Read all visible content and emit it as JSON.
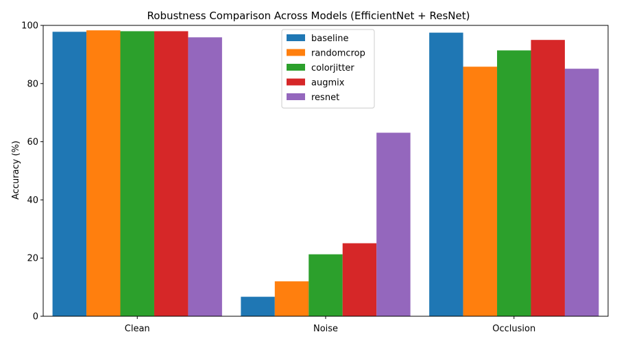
{
  "chart_data": {
    "type": "bar",
    "title": "Robustness Comparison Across Models (EfficientNet + ResNet)",
    "xlabel": "",
    "ylabel": "Accuracy (%)",
    "ylim": [
      0,
      100
    ],
    "yticks": [
      0,
      20,
      40,
      60,
      80,
      100
    ],
    "categories": [
      "Clean",
      "Noise",
      "Occlusion"
    ],
    "series": [
      {
        "name": "baseline",
        "color": "#1f77b4",
        "values": [
          97.8,
          6.7,
          97.5
        ]
      },
      {
        "name": "randomcrop",
        "color": "#ff7f0e",
        "values": [
          98.3,
          12.0,
          85.8
        ]
      },
      {
        "name": "colorjitter",
        "color": "#2ca02c",
        "values": [
          98.0,
          21.3,
          91.4
        ]
      },
      {
        "name": "augmix",
        "color": "#d62728",
        "values": [
          98.0,
          25.1,
          95.0
        ]
      },
      {
        "name": "resnet",
        "color": "#9467bd",
        "values": [
          95.9,
          63.1,
          85.1
        ]
      }
    ],
    "grid": false,
    "legend_position": "upper center"
  }
}
